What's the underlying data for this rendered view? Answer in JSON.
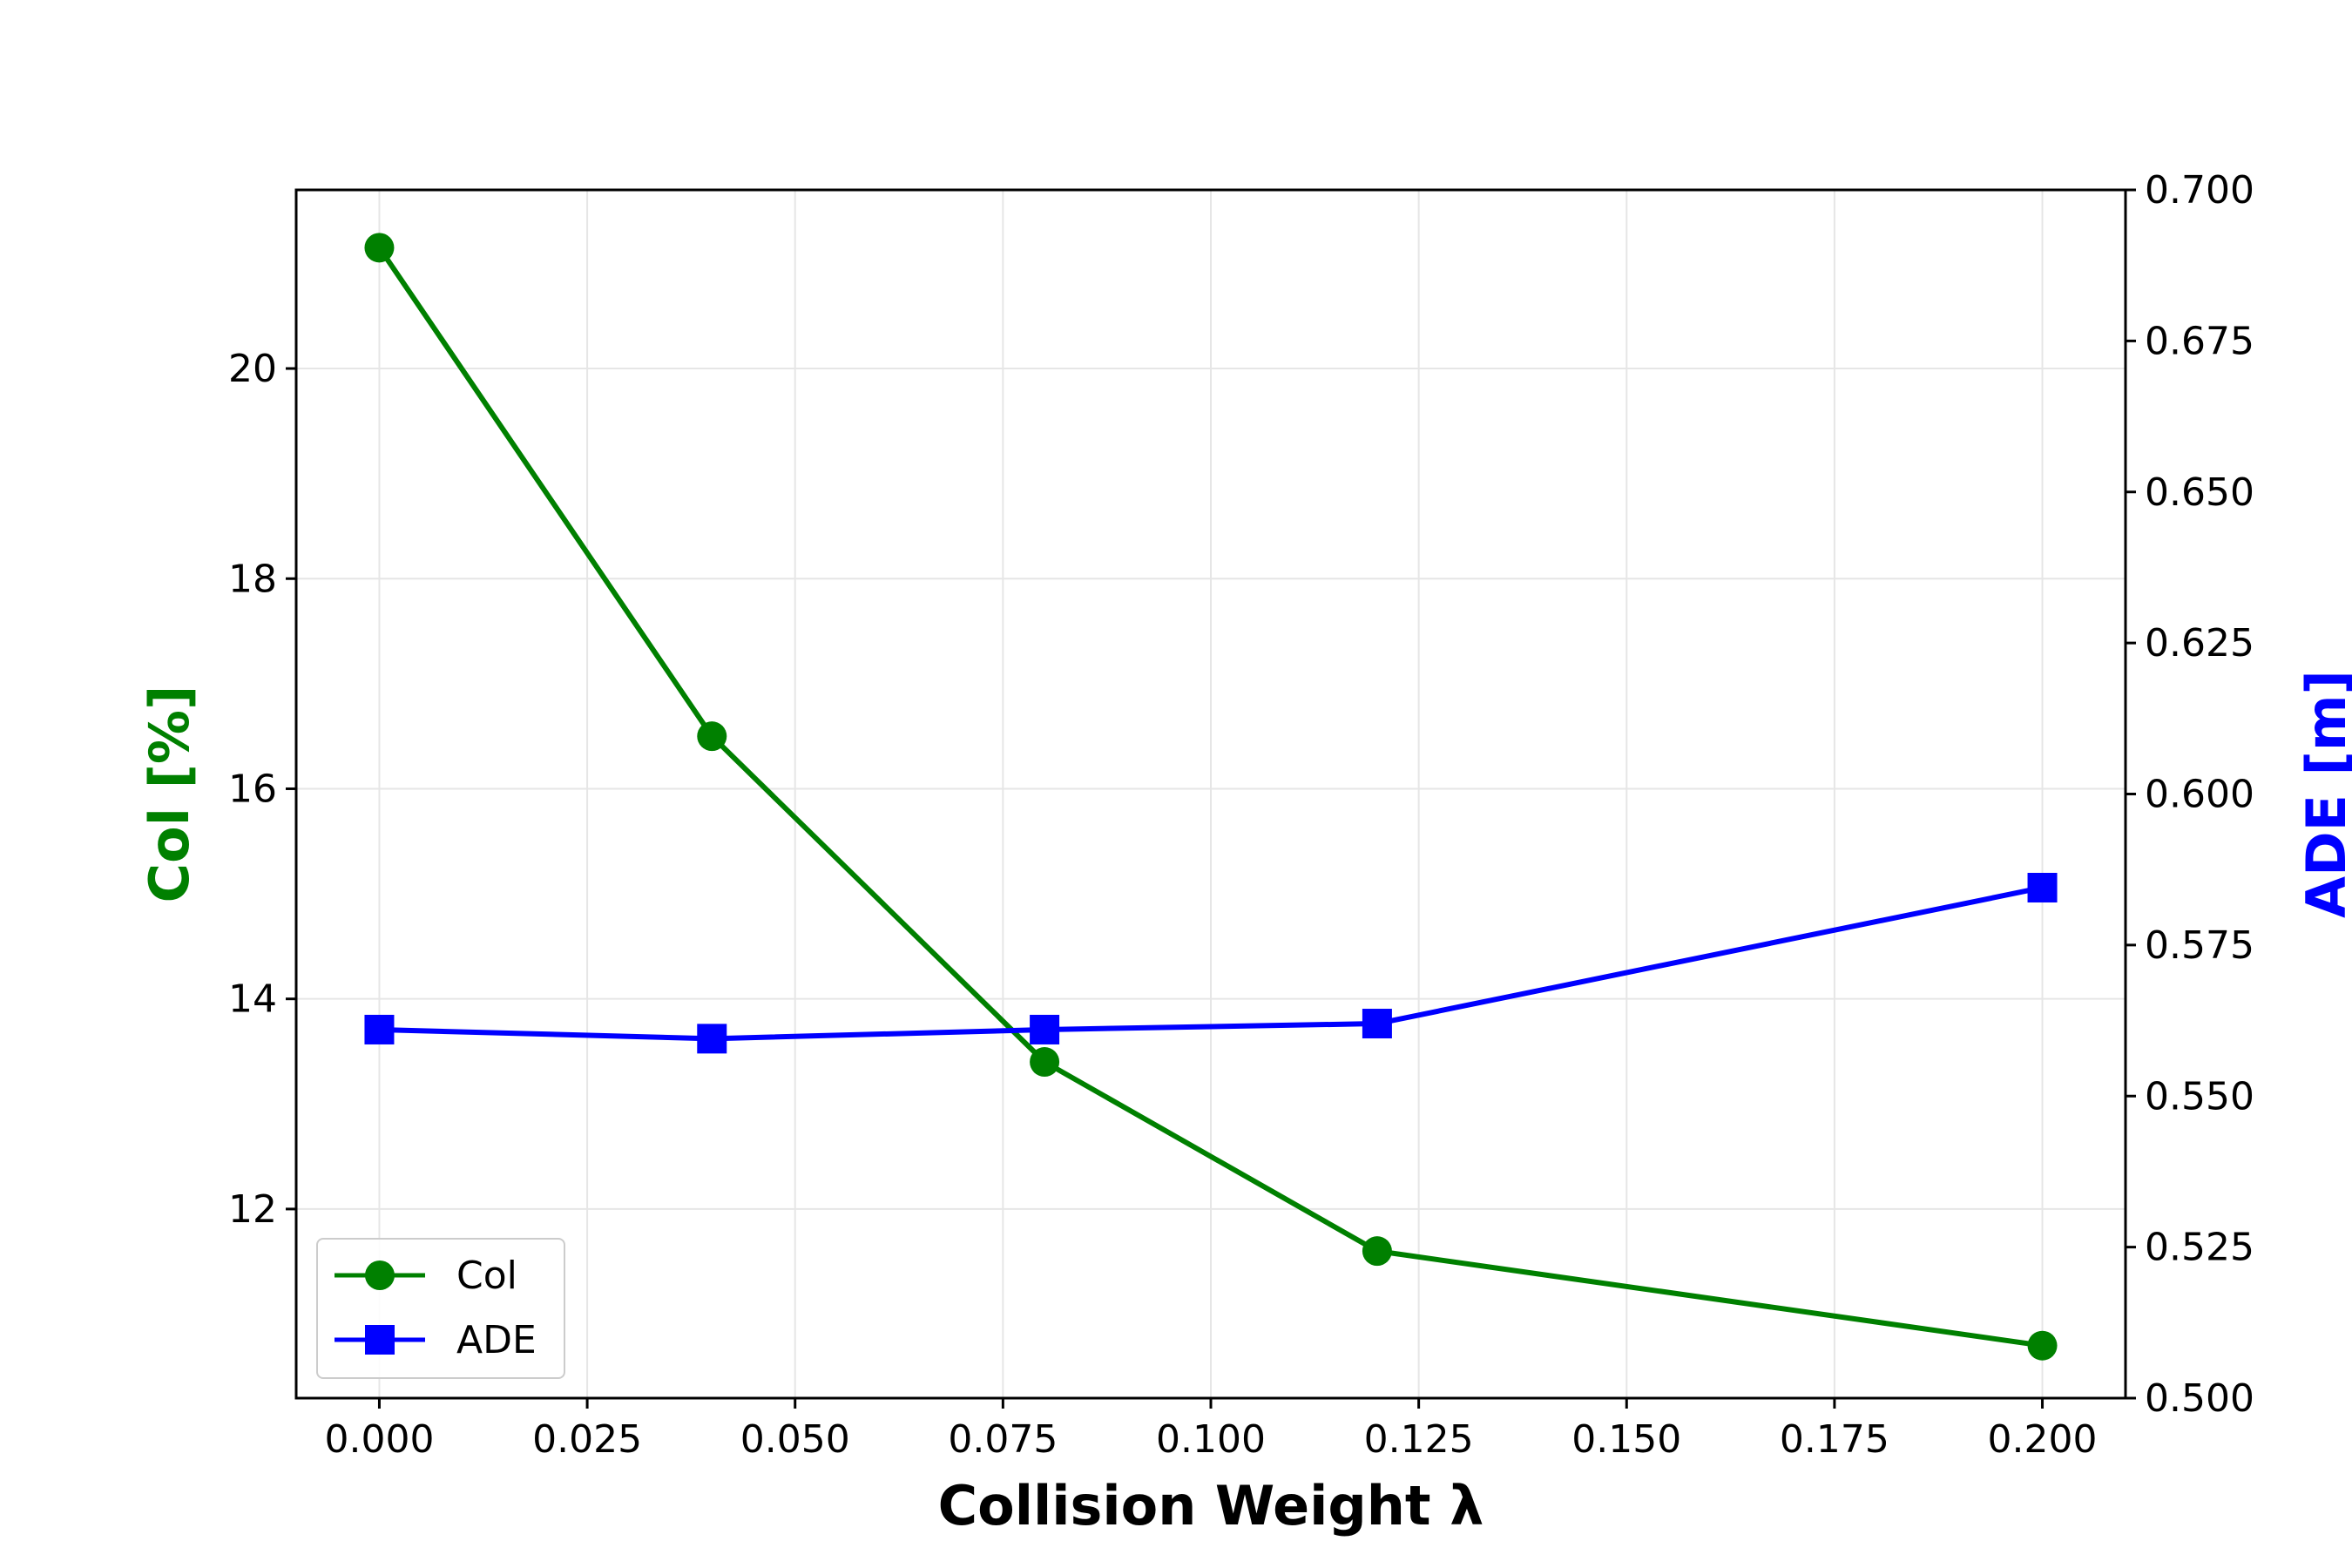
{
  "chart_data": {
    "type": "line",
    "title": "",
    "xlabel": "Collision Weight λ",
    "ylabel_left": "Col [%]",
    "ylabel_right": "ADE [m]",
    "xlim": [
      -0.01,
      0.21
    ],
    "ylim_left": [
      10.2,
      21.7
    ],
    "ylim_right": [
      0.5,
      0.7
    ],
    "grid": true,
    "legend_position": "lower-left",
    "x_ticks": [
      "0.000",
      "0.025",
      "0.050",
      "0.075",
      "0.100",
      "0.125",
      "0.150",
      "0.175",
      "0.200"
    ],
    "y_left_ticks": [
      "12",
      "14",
      "16",
      "18",
      "20"
    ],
    "y_right_ticks": [
      "0.500",
      "0.525",
      "0.550",
      "0.575",
      "0.600",
      "0.625",
      "0.650",
      "0.675",
      "0.700"
    ],
    "x": [
      0.0,
      0.04,
      0.08,
      0.12,
      0.2
    ],
    "series": [
      {
        "name": "Col",
        "axis": "left",
        "marker": "circle",
        "color": "#008000",
        "values": [
          21.15,
          16.5,
          13.4,
          11.6,
          10.7
        ]
      },
      {
        "name": "ADE",
        "axis": "right",
        "marker": "square",
        "color": "#0000ff",
        "values": [
          0.561,
          0.5595,
          0.561,
          0.562,
          0.5845
        ]
      }
    ]
  },
  "colors": {
    "col": "#008000",
    "ade": "#0000ff",
    "grid": "#e6e6e6",
    "axis": "#000000"
  }
}
